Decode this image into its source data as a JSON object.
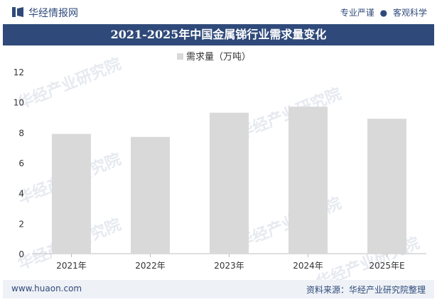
{
  "header": {
    "logo_text": "华经情报网",
    "slogan_left": "专业严谨",
    "slogan_sep": "●",
    "slogan_right": "客观科学"
  },
  "watermark": {
    "cn": "华经产业研究院",
    "en": "www.huaon.com"
  },
  "chart_data": {
    "type": "bar",
    "title": "2021-2025年中国金属锑行业需求量变化",
    "categories": [
      "2021年",
      "2022年",
      "2023年",
      "2024年",
      "2025年E"
    ],
    "series": [
      {
        "name": "需求量（万吨）",
        "values": [
          7.9,
          7.7,
          9.3,
          9.7,
          8.9
        ]
      }
    ],
    "ylim": [
      0,
      12
    ],
    "yticks": [
      0,
      2,
      4,
      6,
      8,
      10,
      12
    ],
    "xlabel": "",
    "ylabel": "",
    "legend_position": "top-center",
    "bar_color": "#d9d9d9",
    "grid": false
  },
  "footer": {
    "url": "www.huaon.com",
    "source": "资料来源：华经产业研究院整理"
  },
  "colors": {
    "brand": "#2f4a7a",
    "bar": "#d9d9d9"
  }
}
